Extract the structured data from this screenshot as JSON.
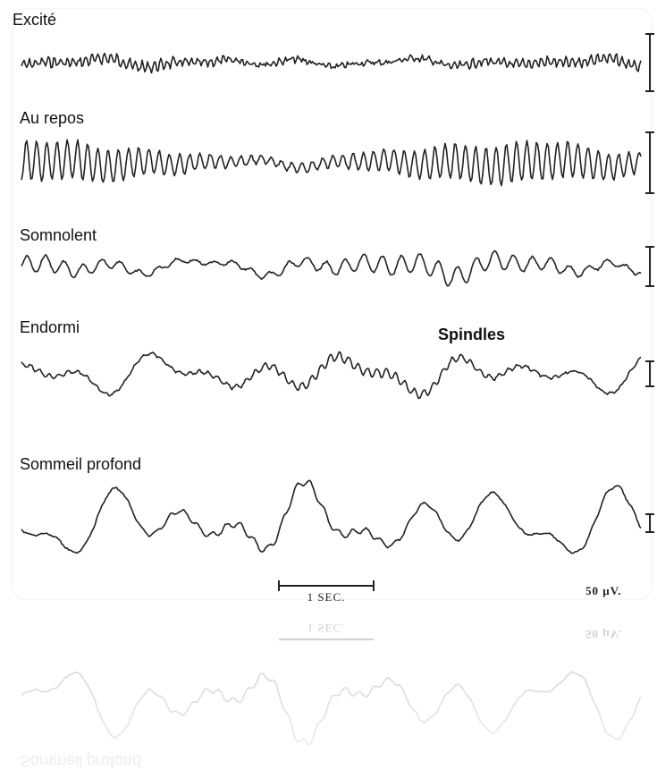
{
  "traces": [
    {
      "label": "Excité"
    },
    {
      "label": "Au repos"
    },
    {
      "label": "Somnolent"
    },
    {
      "label": "Endormi",
      "annotation": "Spindles"
    },
    {
      "label": "Sommeil profond"
    }
  ],
  "scale": {
    "time": "1 SEC.",
    "amplitude": "50 μV."
  }
}
